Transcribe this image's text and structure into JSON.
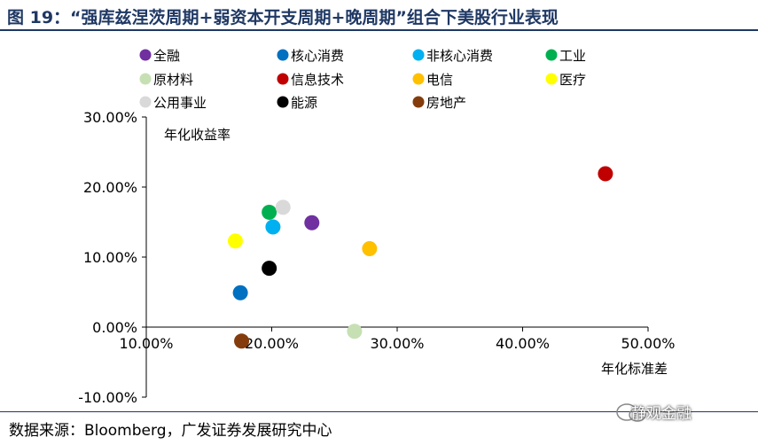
{
  "title": "图 19：“强库兹涅茨周期+弱资本开支周期+晚周期”组合下美股行业表现",
  "source": "数据来源：Bloomberg，广发证券发展研究中心",
  "watermark": "静观金融",
  "chart_data": {
    "type": "scatter",
    "xlabel": "年化标准差",
    "ylabel": "年化收益率",
    "xlim": [
      0.1,
      0.5
    ],
    "ylim": [
      -0.1,
      0.3
    ],
    "xticks": [
      "10.00%",
      "20.00%",
      "30.00%",
      "40.00%",
      "50.00%"
    ],
    "yticks": [
      "-10.00%",
      "0.00%",
      "10.00%",
      "20.00%",
      "30.00%"
    ],
    "legend_position": "top",
    "series": [
      {
        "name": "全融",
        "color": "#7030a0",
        "x": 0.232,
        "y": 0.149
      },
      {
        "name": "核心消费",
        "color": "#0070c0",
        "x": 0.175,
        "y": 0.049
      },
      {
        "name": "非核心消费",
        "color": "#00b0f0",
        "x": 0.201,
        "y": 0.143
      },
      {
        "name": "工业",
        "color": "#00b050",
        "x": 0.198,
        "y": 0.164
      },
      {
        "name": "原材料",
        "color": "#c6e0b4",
        "x": 0.266,
        "y": -0.006
      },
      {
        "name": "信息技术",
        "color": "#c00000",
        "x": 0.466,
        "y": 0.219
      },
      {
        "name": "电信",
        "color": "#ffc000",
        "x": 0.278,
        "y": 0.112
      },
      {
        "name": "医疗",
        "color": "#ffff00",
        "x": 0.171,
        "y": 0.123
      },
      {
        "name": "公用事业",
        "color": "#d9d9d9",
        "x": 0.209,
        "y": 0.171
      },
      {
        "name": "能源",
        "color": "#000000",
        "x": 0.198,
        "y": 0.084
      },
      {
        "name": "房地产",
        "color": "#843c0c",
        "x": 0.176,
        "y": -0.02
      }
    ]
  }
}
